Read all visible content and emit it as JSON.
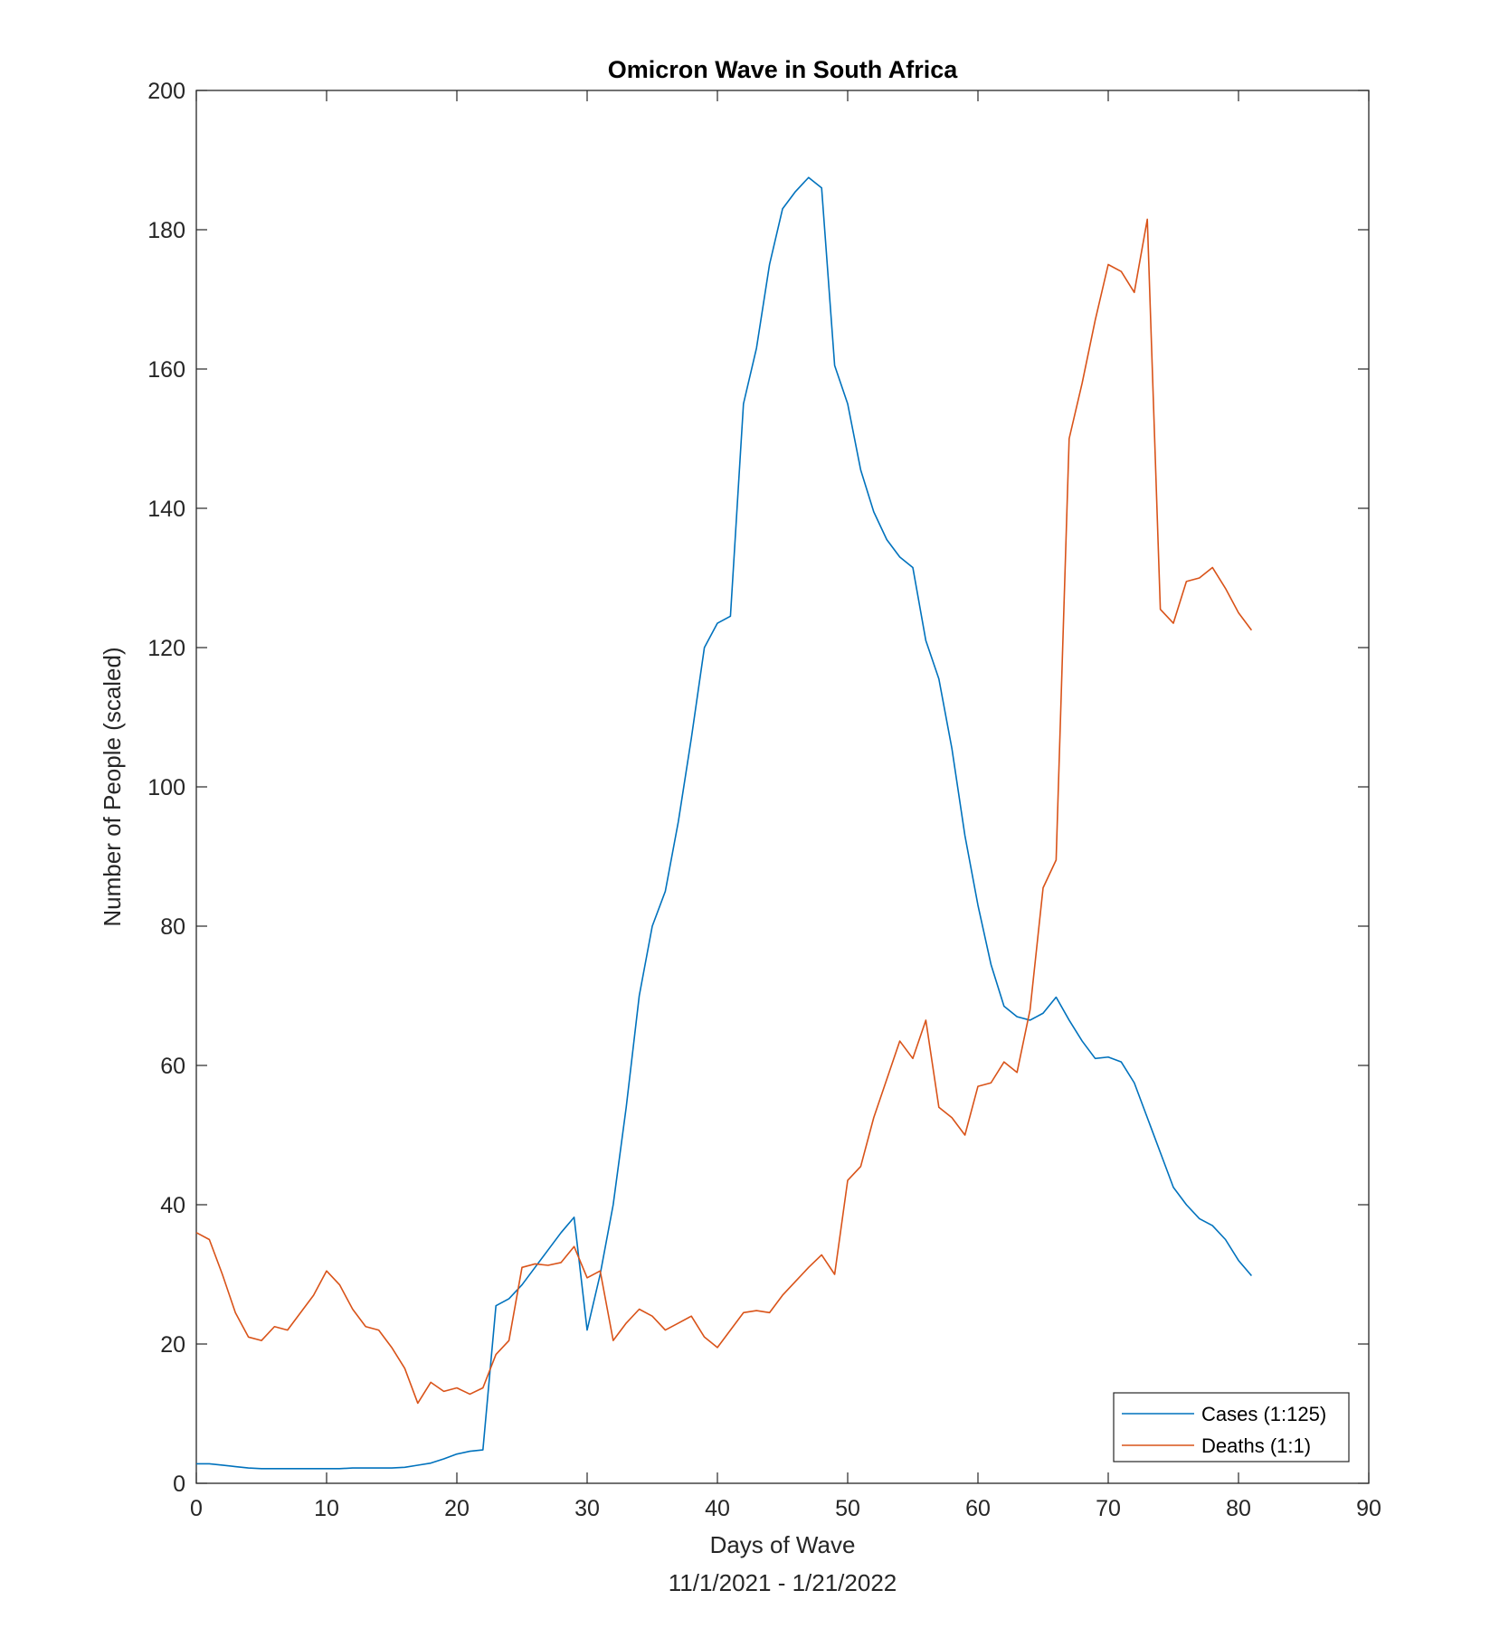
{
  "chart_data": {
    "type": "line",
    "title": "Omicron Wave in South Africa",
    "xlabel": "Days of Wave",
    "xlabel2": "11/1/2021 - 1/21/2022",
    "ylabel": "Number of People (scaled)",
    "xlim": [
      0,
      90
    ],
    "ylim": [
      0,
      200
    ],
    "xticks": [
      0,
      10,
      20,
      30,
      40,
      50,
      60,
      70,
      80,
      90
    ],
    "yticks": [
      0,
      20,
      40,
      60,
      80,
      100,
      120,
      140,
      160,
      180,
      200
    ],
    "grid": false,
    "legend_position": "bottom-right",
    "x": [
      0,
      1,
      2,
      3,
      4,
      5,
      6,
      7,
      8,
      9,
      10,
      11,
      12,
      13,
      14,
      15,
      16,
      17,
      18,
      19,
      20,
      21,
      22,
      23,
      24,
      25,
      26,
      27,
      28,
      29,
      30,
      31,
      32,
      33,
      34,
      35,
      36,
      37,
      38,
      39,
      40,
      41,
      42,
      43,
      44,
      45,
      46,
      47,
      48,
      49,
      50,
      51,
      52,
      53,
      54,
      55,
      56,
      57,
      58,
      59,
      60,
      61,
      62,
      63,
      64,
      65,
      66,
      67,
      68,
      69,
      70,
      71,
      72,
      73,
      74,
      75,
      76,
      77,
      78,
      79,
      80,
      81
    ],
    "series": [
      {
        "name": "Cases (1:125)",
        "color": "#0072BD",
        "values": [
          2.8,
          2.8,
          2.6,
          2.4,
          2.2,
          2.1,
          2.1,
          2.1,
          2.1,
          2.1,
          2.1,
          2.1,
          2.2,
          2.2,
          2.2,
          2.2,
          2.3,
          2.6,
          2.9,
          3.5,
          4.2,
          4.6,
          4.8,
          25.5,
          26.5,
          28.5,
          31,
          33.5,
          36,
          38.2,
          22,
          30,
          40,
          54,
          70,
          80,
          85,
          95,
          107,
          120,
          123.5,
          124.5,
          155,
          163,
          175,
          183,
          185.5,
          187.5,
          186,
          160.5,
          155,
          145.5,
          139.5,
          135.5,
          133,
          131.5,
          121,
          115.5,
          105.5,
          93,
          83,
          74.5,
          68.5,
          67,
          66.5,
          67.5,
          69.8,
          66.5,
          63.5,
          61,
          61.2,
          60.5,
          57.5,
          52.5,
          47.5,
          42.5,
          40,
          38,
          37,
          35,
          32,
          29.8
        ]
      },
      {
        "name": "Deaths (1:1)",
        "color": "#D95319",
        "values": [
          36,
          35,
          30,
          24.5,
          21,
          20.5,
          22.5,
          22,
          24.5,
          27,
          30.5,
          28.5,
          25,
          22.5,
          22,
          19.5,
          16.5,
          11.5,
          14.5,
          13.2,
          13.7,
          12.8,
          13.7,
          18.5,
          20.5,
          31,
          31.5,
          31.3,
          31.7,
          34,
          29.5,
          30.5,
          20.5,
          23,
          25,
          24,
          22,
          23,
          24,
          21,
          19.5,
          22,
          24.5,
          24.8,
          24.5,
          27,
          29,
          31,
          32.8,
          30,
          43.5,
          45.5,
          52.5,
          58,
          63.5,
          61,
          66.5,
          54,
          52.5,
          50,
          57,
          57.5,
          60.5,
          59,
          68,
          85.5,
          89.5,
          150,
          158,
          167,
          175,
          174,
          171,
          181.5,
          125.5,
          123.5,
          129.5,
          130,
          131.5,
          128.5,
          125,
          122.5
        ]
      }
    ]
  }
}
